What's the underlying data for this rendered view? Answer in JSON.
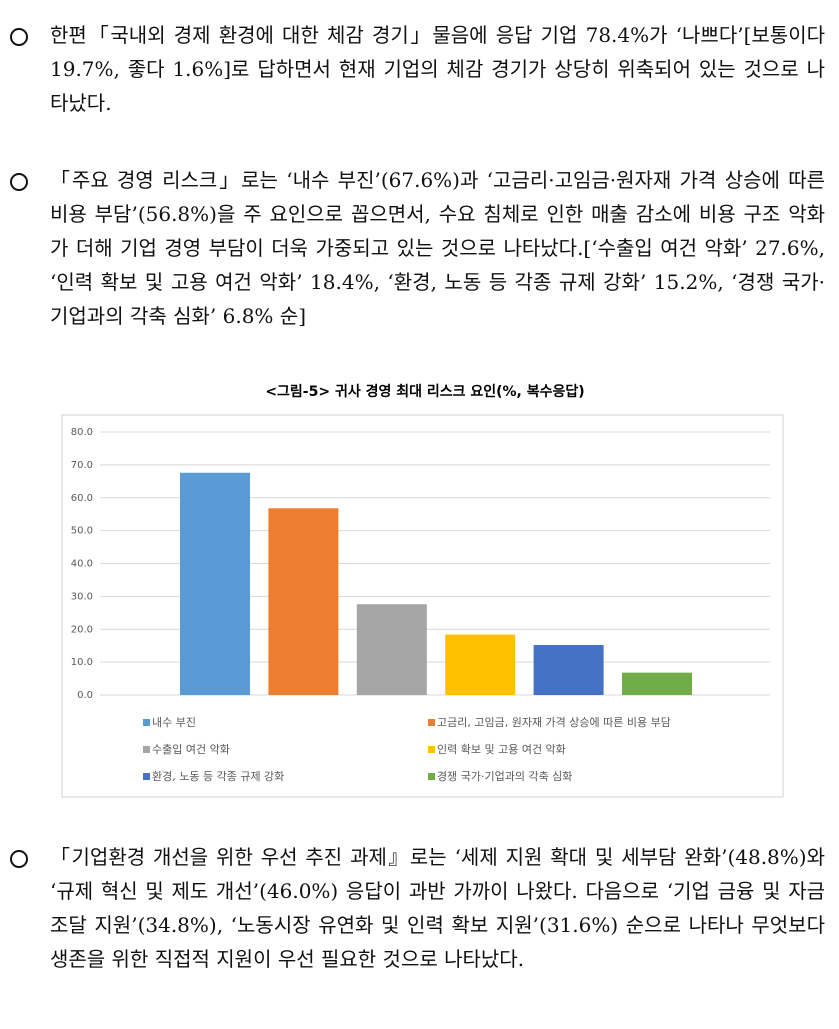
{
  "paragraphs": [
    "한편「국내외 경제 환경에 대한 체감 경기」물음에 응답 기업 78.4%가 ‘나쁘다’[보통이다 19.7%, 좋다 1.6%]로 답하면서 현재 기업의 체감 경기가 상당히 위축되어 있는 것으로 나타났다.",
    "「주요 경영 리스크」로는 ‘내수 부진’(67.6%)과 ‘고금리·고임금·원자재 가격 상승에 따른 비용 부담’(56.8%)을 주 요인으로 꼽으면서, 수요 침체로 인한 매출 감소에 비용 구조 악화가 더해 기업 경영 부담이 더욱 가중되고 있는 것으로 나타났다.[‘수출입 여건 악화’ 27.6%, ‘인력 확보 및 고용 여건 악화’ 18.4%, ‘환경, 노동 등 각종 규제 강화’ 15.2%, ‘경쟁 국가·기업과의 각축 심화’ 6.8% 순]",
    "「기업환경 개선을 위한 우선 추진 과제』로는 ‘세제 지원 확대 및 세부담 완화’(48.8%)와 ‘규제 혁신 및 제도 개선’(46.0%) 응답이 과반 가까이 나왔다. 다음으로 ‘기업 금융 및 자금 조달 지원’(34.8%), ‘노동시장 유연화 및 인력 확보 지원’(31.6%) 순으로 나타나 무엇보다 생존을 위한 직접적 지원이 우선 필요한 것으로 나타났다."
  ],
  "chart_data": {
    "type": "bar",
    "title": "<그림-5> 귀사 경영 최대 리스크 요인(%, 복수응답)",
    "categories": [
      "내수 부진",
      "고금리, 고임금, 원자재 가격 상승에 따른 비용 부담",
      "수출입 여건 악화",
      "인력 확보 및 고용 여건 악화",
      "환경, 노동 등 각종 규제 강화",
      "경쟁 국가·기업과의 각축 심화"
    ],
    "values": [
      67.6,
      56.8,
      27.6,
      18.4,
      15.2,
      6.8
    ],
    "colors": [
      "#5b9bd5",
      "#ed7d31",
      "#a5a5a5",
      "#ffc000",
      "#4472c4",
      "#70ad47"
    ],
    "ylim": [
      0,
      80
    ],
    "yticks": [
      {
        "value": 0,
        "label": "0.0"
      },
      {
        "value": 10,
        "label": "10.0"
      },
      {
        "value": 20,
        "label": "20.0"
      },
      {
        "value": 30,
        "label": "30.0"
      },
      {
        "value": 40,
        "label": "40.0"
      },
      {
        "value": 50,
        "label": "50.0"
      },
      {
        "value": 60,
        "label": "60.0"
      },
      {
        "value": 70,
        "label": "70.0"
      },
      {
        "value": 80,
        "label": "80.0"
      }
    ],
    "grid": true
  }
}
